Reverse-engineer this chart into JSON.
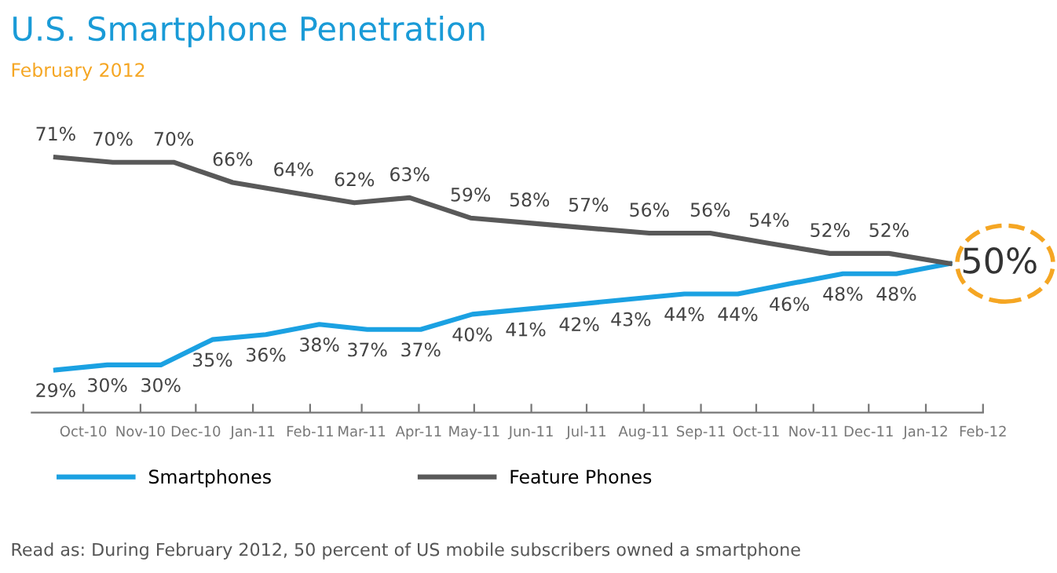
{
  "chart_data": {
    "type": "line",
    "title": "U.S. Smartphone Penetration",
    "subtitle": "February 2012",
    "xlim": [
      "2010-09-03",
      "2012-02-01"
    ],
    "xticks": [
      {
        "value": "2010-10-01",
        "label": "Oct-10"
      },
      {
        "value": "2010-11-01",
        "label": "Nov-10"
      },
      {
        "value": "2010-12-01",
        "label": "Dec-10"
      },
      {
        "value": "2011-01-01",
        "label": "Jan-11"
      },
      {
        "value": "2011-02-01",
        "label": "Feb-11"
      },
      {
        "value": "2011-03-01",
        "label": "Mar-11"
      },
      {
        "value": "2011-04-01",
        "label": "Apr-11"
      },
      {
        "value": "2011-05-01",
        "label": "May-11"
      },
      {
        "value": "2011-06-01",
        "label": "Jun-11"
      },
      {
        "value": "2011-07-01",
        "label": "Jul-11"
      },
      {
        "value": "2011-08-01",
        "label": "Aug-11"
      },
      {
        "value": "2011-09-01",
        "label": "Sep-11"
      },
      {
        "value": "2011-10-01",
        "label": "Oct-11"
      },
      {
        "value": "2011-11-01",
        "label": "Nov-11"
      },
      {
        "value": "2011-12-01",
        "label": "Dec-11"
      },
      {
        "value": "2012-01-01",
        "label": "Jan-12"
      },
      {
        "value": "2012-02-01",
        "label": "Feb-12"
      }
    ],
    "tick_labels": "x",
    "grid": false,
    "legend": "bottom",
    "marker": "none",
    "line_style": "solid",
    "series": [
      {
        "name": "Smartphones",
        "color": "#1ba1e2",
        "x": [
          "2010-09-16",
          "2010-10-14",
          "2010-11-12",
          "2010-12-10",
          "2011-01-08",
          "2011-02-06",
          "2011-03-04",
          "2011-04-02",
          "2011-04-30",
          "2011-05-29",
          "2011-06-27",
          "2011-07-25",
          "2011-08-23",
          "2011-09-21",
          "2011-10-19",
          "2011-11-17",
          "2011-12-16",
          "2012-01-14"
        ],
        "values": [
          29,
          30,
          30,
          35,
          36,
          38,
          37,
          37,
          40,
          41,
          42,
          43,
          44,
          44,
          46,
          48,
          48,
          50
        ],
        "value_labels": [
          "29%",
          "30%",
          "30%",
          "35%",
          "36%",
          "38%",
          "37%",
          "37%",
          "40%",
          "41%",
          "42%",
          "43%",
          "44%",
          "44%",
          "46%",
          "48%",
          "48%",
          "50%"
        ]
      },
      {
        "name": "Feature Phones",
        "color": "#595959",
        "x": [
          "2010-09-16",
          "2010-10-17",
          "2010-11-19",
          "2010-12-21",
          "2011-01-23",
          "2011-02-25",
          "2011-03-27",
          "2011-04-29",
          "2011-05-31",
          "2011-07-02",
          "2011-08-04",
          "2011-09-06",
          "2011-10-08",
          "2011-11-10",
          "2011-12-12",
          "2012-01-14"
        ],
        "values": [
          71,
          70,
          70,
          66,
          64,
          62,
          63,
          59,
          58,
          57,
          56,
          56,
          54,
          52,
          52,
          50
        ],
        "value_labels": [
          "71%",
          "70%",
          "70%",
          "66%",
          "64%",
          "62%",
          "63%",
          "59%",
          "58%",
          "57%",
          "56%",
          "56%",
          "54%",
          "52%",
          "52%",
          null
        ]
      }
    ],
    "annotations": [
      "Read as: During February 2012, 50 percent of US mobile subscribers owned a smartphone"
    ]
  }
}
